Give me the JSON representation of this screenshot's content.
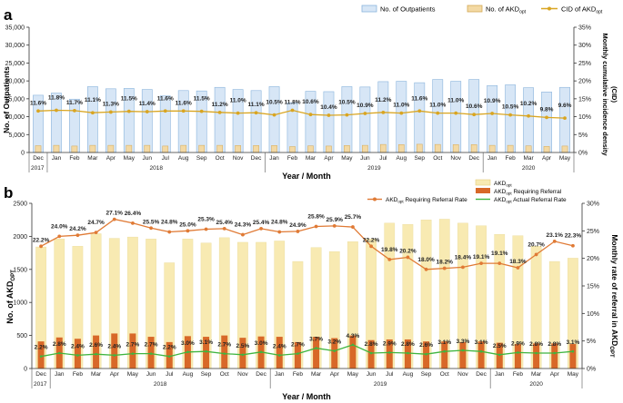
{
  "chart_data": [
    {
      "type": "bar",
      "panel_label": "a",
      "categories": [
        "Dec",
        "Jan",
        "Feb",
        "Mar",
        "Apr",
        "May",
        "Jun",
        "Jul",
        "Aug",
        "Sep",
        "Oct",
        "Nov",
        "Dec",
        "Jan",
        "Feb",
        "Mar",
        "Apr",
        "May",
        "Jun",
        "Jul",
        "Aug",
        "Sep",
        "Oct",
        "Nov",
        "Dec",
        "Jan",
        "Feb",
        "Mar",
        "Apr",
        "May"
      ],
      "year_groups": [
        {
          "label": "2017",
          "start": 0,
          "end": 0
        },
        {
          "label": "2018",
          "start": 1,
          "end": 12
        },
        {
          "label": "2019",
          "start": 13,
          "end": 24
        },
        {
          "label": "2020",
          "start": 25,
          "end": 29
        }
      ],
      "legend_outpatients": "No. of Outpatients",
      "legend_akd_main": "No. of AKD",
      "legend_akd_sub": "opt",
      "legend_cid_main": "CID of AKD",
      "legend_cid_sub": "opt",
      "series": [
        {
          "name": "No. of Outpatients",
          "axis": "left",
          "values": [
            16000,
            16600,
            14900,
            18400,
            17800,
            17900,
            17600,
            15800,
            17300,
            17200,
            18200,
            17600,
            17300,
            18400,
            13900,
            17100,
            17000,
            18400,
            18300,
            19800,
            19900,
            19500,
            20400,
            19900,
            20400,
            18700,
            18900,
            18100,
            16900,
            18200
          ]
        },
        {
          "name": "No. of AKD",
          "axis": "left",
          "values": [
            1900,
            2000,
            1800,
            2000,
            2000,
            2000,
            2000,
            1800,
            2000,
            2000,
            2000,
            1950,
            1950,
            1950,
            1650,
            1850,
            1800,
            1950,
            2000,
            2250,
            2200,
            2300,
            2250,
            2200,
            2200,
            2000,
            2000,
            1850,
            1700,
            1800
          ]
        },
        {
          "name": "CID of AKD",
          "axis": "right",
          "values": [
            11.6,
            11.8,
            11.7,
            11.1,
            11.3,
            11.5,
            11.4,
            11.6,
            11.6,
            11.5,
            11.2,
            11.0,
            11.1,
            10.5,
            11.8,
            10.6,
            10.4,
            10.5,
            10.9,
            11.2,
            11.0,
            11.6,
            11.0,
            11.0,
            10.6,
            10.9,
            10.5,
            10.2,
            9.8,
            9.6
          ]
        }
      ],
      "xlabel": "Year / Month",
      "ylabel": "No. of Outpatients",
      "y2label": "Monthly cumulative incidence density",
      "y2label_sub": "(CID)",
      "ylim": [
        0,
        35000
      ],
      "y2lim": [
        0,
        35
      ],
      "yticks": [
        "0",
        "5,000",
        "10,000",
        "15,000",
        "20,000",
        "25,000",
        "30,000",
        "35,000"
      ],
      "y2ticks": [
        "0%",
        "5%",
        "10%",
        "15%",
        "20%",
        "25%",
        "30%",
        "35%"
      ],
      "grid": false,
      "legend_position": "top-right"
    },
    {
      "type": "bar",
      "panel_label": "b",
      "categories": [
        "Dec",
        "Jan",
        "Feb",
        "Mar",
        "Apr",
        "May",
        "Jun",
        "Jul",
        "Aug",
        "Sep",
        "Oct",
        "Nov",
        "Dec",
        "Jan",
        "Feb",
        "Mar",
        "Apr",
        "May",
        "Jun",
        "Jul",
        "Aug",
        "Sep",
        "Oct",
        "Nov",
        "Dec",
        "Jan",
        "Feb",
        "Mar",
        "Apr",
        "May"
      ],
      "year_groups": [
        {
          "label": "2017",
          "start": 0,
          "end": 0
        },
        {
          "label": "2018",
          "start": 1,
          "end": 12
        },
        {
          "label": "2019",
          "start": 13,
          "end": 24
        },
        {
          "label": "2020",
          "start": 25,
          "end": 29
        }
      ],
      "legend": [
        {
          "main": "AKD",
          "sub": "opt",
          "rest": ""
        },
        {
          "main": "AKD",
          "sub": "opt",
          "rest": " Requiring Referral"
        },
        {
          "main": "AKD",
          "sub": "opt",
          "rest": " Requiring Referral Rate"
        },
        {
          "main": "AKD",
          "sub": "opt",
          "rest": " Actual Referral Rate"
        }
      ],
      "series": [
        {
          "name": "AKDopt",
          "axis": "left",
          "values": [
            1840,
            1960,
            1850,
            2040,
            1970,
            1990,
            1960,
            1600,
            1960,
            1900,
            1980,
            1910,
            1910,
            1930,
            1620,
            1830,
            1770,
            1920,
            1960,
            2200,
            2180,
            2250,
            2260,
            2200,
            2160,
            2030,
            2010,
            1850,
            1620,
            1670
          ]
        },
        {
          "name": "AKDopt Requiring Referral",
          "axis": "left",
          "values": [
            410,
            470,
            450,
            500,
            530,
            530,
            480,
            400,
            490,
            480,
            500,
            465,
            485,
            480,
            400,
            480,
            460,
            500,
            430,
            440,
            440,
            410,
            410,
            400,
            410,
            390,
            370,
            380,
            380,
            370
          ]
        },
        {
          "name": "AKDopt Requiring Referral Rate",
          "axis": "right",
          "values": [
            22.2,
            24.0,
            24.2,
            24.7,
            27.1,
            26.4,
            25.5,
            24.8,
            25.0,
            25.3,
            25.4,
            24.3,
            25.4,
            24.8,
            24.9,
            25.8,
            25.9,
            25.7,
            22.2,
            19.8,
            20.2,
            18.0,
            18.2,
            18.4,
            19.1,
            19.1,
            18.3,
            20.7,
            23.1,
            22.3
          ]
        },
        {
          "name": "AKDopt Actual Referral Rate",
          "axis": "right",
          "values": [
            2.2,
            2.8,
            2.4,
            2.6,
            2.4,
            2.7,
            2.7,
            2.2,
            3.0,
            3.1,
            2.7,
            2.5,
            3.0,
            2.4,
            2.7,
            3.7,
            3.2,
            4.3,
            2.8,
            2.9,
            2.8,
            2.6,
            3.1,
            3.3,
            3.1,
            2.5,
            2.9,
            2.8,
            2.8,
            3.1
          ]
        }
      ],
      "xlabel": "Year / Month",
      "ylabel_main": "No. of AKD",
      "ylabel_sub": "OPT",
      "y2label_main": "Monthly rate of referral in AKD",
      "y2label_sub": "OPT",
      "ylim": [
        0,
        2500
      ],
      "y2lim": [
        0,
        30
      ],
      "yticks": [
        "0",
        "500",
        "1000",
        "1500",
        "2000",
        "2500"
      ],
      "y2ticks": [
        "0%",
        "5%",
        "10%",
        "15%",
        "20%",
        "25%",
        "30%"
      ],
      "grid": false,
      "legend_position": "top-right"
    }
  ],
  "colors": {
    "outpatient_fill": "#d7e6f6",
    "outpatient_stroke": "#8ab4dc",
    "akd_a_fill": "#f3d9a4",
    "akd_a_stroke": "#d4a856",
    "cid_line": "#d9a521",
    "akd_b_fill": "#f8eab2",
    "referral_fill": "#d86828",
    "referral_rate_line": "#e07a35",
    "actual_rate_line": "#3fb53f"
  }
}
